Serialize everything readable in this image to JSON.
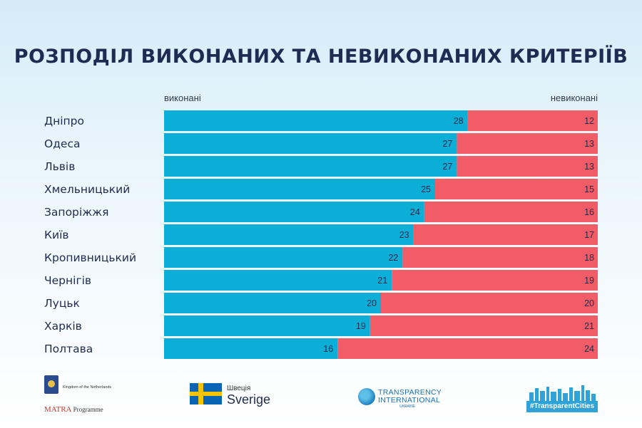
{
  "title": "РОЗПОДІЛ ВИКОНАНИХ ТА НЕВИКОНАНИХ КРИТЕРІЇВ",
  "legend": {
    "left": "виконані",
    "right": "невиконані"
  },
  "colors": {
    "done": "#0aaed6",
    "not_done": "#f25c66"
  },
  "chart_data": {
    "type": "bar",
    "orientation": "horizontal",
    "stacked": true,
    "title": "РОЗПОДІЛ ВИКОНАНИХ ТА НЕВИКОНАНИХ КРИТЕРІЇВ",
    "categories": [
      "Дніпро",
      "Одеса",
      "Львів",
      "Хмельницький",
      "Запоріжжя",
      "Київ",
      "Кропивницький",
      "Чернігів",
      "Луцьк",
      "Харків",
      "Полтава"
    ],
    "series": [
      {
        "name": "виконані",
        "values": [
          28,
          27,
          27,
          25,
          24,
          23,
          22,
          21,
          20,
          19,
          16
        ]
      },
      {
        "name": "невиконані",
        "values": [
          12,
          13,
          13,
          15,
          16,
          17,
          18,
          19,
          20,
          21,
          24
        ]
      }
    ],
    "xlim": [
      0,
      40
    ],
    "grid": false,
    "legend_position": "top"
  },
  "logos": {
    "nl_text": "Kingdom of the Netherlands",
    "matra": "MATRA",
    "matra_sub": "Programme",
    "sweden_small": "Швеція",
    "sweden_big": "Sverige",
    "ti_line1": "TRANSPARENCY",
    "ti_line2": "INTERNATIONAL",
    "ti_line3": "UKRAINE",
    "tc_label": "#TransparentCities"
  }
}
